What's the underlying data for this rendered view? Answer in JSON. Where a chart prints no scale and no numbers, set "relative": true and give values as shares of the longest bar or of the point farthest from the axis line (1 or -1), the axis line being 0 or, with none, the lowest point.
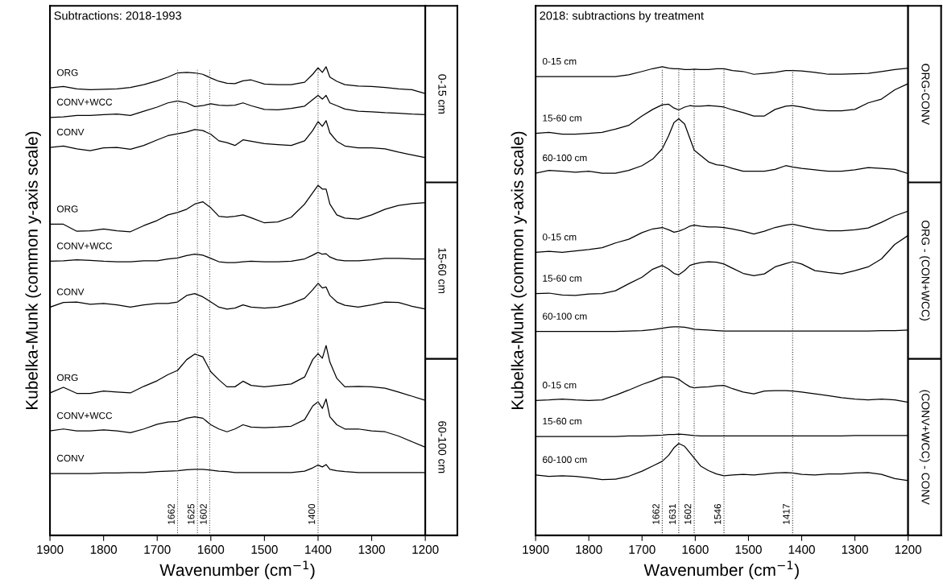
{
  "chart_data": [
    {
      "type": "line",
      "title": "Subtractions: 2018-1993",
      "xlabel": "Wavenumber (cm$^{−1}$)",
      "ylabel": "Kubelka-Munk (common y-axis scale)",
      "relative": true,
      "xlim": [
        1900,
        1200
      ],
      "xticks": [
        1900,
        1800,
        1700,
        1600,
        1500,
        1400,
        1300,
        1200
      ],
      "x": [
        1900,
        1875,
        1850,
        1825,
        1800,
        1775,
        1750,
        1725,
        1700,
        1680,
        1662,
        1645,
        1630,
        1615,
        1600,
        1585,
        1570,
        1555,
        1540,
        1525,
        1500,
        1475,
        1450,
        1425,
        1410,
        1400,
        1392,
        1385,
        1378,
        1365,
        1350,
        1325,
        1300,
        1275,
        1250,
        1225,
        1200
      ],
      "series": [
        {
          "name": "ORG",
          "color": "#000000",
          "values": [
            0.955,
            0.958,
            0.953,
            0.951,
            0.952,
            0.953,
            0.956,
            0.962,
            0.97,
            0.978,
            0.987,
            0.988,
            0.987,
            0.984,
            0.976,
            0.969,
            0.965,
            0.964,
            0.97,
            0.972,
            0.963,
            0.962,
            0.962,
            0.967,
            0.984,
            0.998,
            0.988,
            1.0,
            0.978,
            0.969,
            0.962,
            0.959,
            0.958,
            0.956,
            0.953,
            0.951,
            0.943
          ]
        },
        {
          "name": "CONV+WCC",
          "color": "#000000",
          "values": [
            0.892,
            0.893,
            0.896,
            0.896,
            0.898,
            0.899,
            0.896,
            0.905,
            0.914,
            0.923,
            0.927,
            0.923,
            0.915,
            0.917,
            0.921,
            0.918,
            0.917,
            0.918,
            0.923,
            0.917,
            0.909,
            0.908,
            0.911,
            0.916,
            0.93,
            0.939,
            0.931,
            0.939,
            0.923,
            0.917,
            0.91,
            0.905,
            0.904,
            0.902,
            0.901,
            0.899,
            0.898
          ]
        },
        {
          "name": "CONV",
          "color": "#000000",
          "values": [
            0.828,
            0.831,
            0.825,
            0.821,
            0.827,
            0.828,
            0.824,
            0.832,
            0.844,
            0.853,
            0.857,
            0.861,
            0.866,
            0.864,
            0.856,
            0.842,
            0.838,
            0.832,
            0.844,
            0.841,
            0.836,
            0.834,
            0.832,
            0.842,
            0.864,
            0.883,
            0.873,
            0.885,
            0.859,
            0.841,
            0.831,
            0.827,
            0.827,
            0.825,
            0.818,
            0.812,
            0.806
          ]
        },
        {
          "name": "ORG",
          "color": "#000000",
          "values": [
            0.664,
            0.664,
            0.649,
            0.65,
            0.654,
            0.65,
            0.648,
            0.661,
            0.672,
            0.684,
            0.689,
            0.696,
            0.707,
            0.712,
            0.699,
            0.681,
            0.679,
            0.681,
            0.684,
            0.678,
            0.667,
            0.669,
            0.679,
            0.707,
            0.731,
            0.747,
            0.739,
            0.739,
            0.707,
            0.684,
            0.677,
            0.675,
            0.684,
            0.696,
            0.704,
            0.708,
            0.71
          ]
        },
        {
          "name": "CONV+WCC",
          "color": "#000000",
          "values": [
            0.585,
            0.586,
            0.588,
            0.587,
            0.585,
            0.584,
            0.584,
            0.586,
            0.586,
            0.59,
            0.592,
            0.597,
            0.6,
            0.598,
            0.591,
            0.584,
            0.582,
            0.582,
            0.584,
            0.585,
            0.584,
            0.584,
            0.585,
            0.59,
            0.598,
            0.604,
            0.6,
            0.601,
            0.594,
            0.588,
            0.586,
            0.586,
            0.588,
            0.591,
            0.591,
            0.59,
            0.59
          ]
        },
        {
          "name": "CONV",
          "color": "#000000",
          "values": [
            0.487,
            0.497,
            0.498,
            0.493,
            0.495,
            0.492,
            0.487,
            0.492,
            0.495,
            0.495,
            0.498,
            0.512,
            0.516,
            0.509,
            0.498,
            0.487,
            0.483,
            0.485,
            0.492,
            0.487,
            0.485,
            0.487,
            0.495,
            0.506,
            0.524,
            0.538,
            0.528,
            0.53,
            0.512,
            0.498,
            0.491,
            0.487,
            0.492,
            0.498,
            0.497,
            0.489,
            0.483
          ]
        },
        {
          "name": "ORG",
          "color": "#000000",
          "values": [
            0.304,
            0.316,
            0.303,
            0.303,
            0.308,
            0.306,
            0.304,
            0.318,
            0.33,
            0.343,
            0.352,
            0.375,
            0.387,
            0.381,
            0.349,
            0.332,
            0.317,
            0.317,
            0.329,
            0.32,
            0.317,
            0.32,
            0.323,
            0.338,
            0.375,
            0.388,
            0.378,
            0.405,
            0.37,
            0.335,
            0.317,
            0.318,
            0.317,
            0.314,
            0.306,
            0.297,
            0.288
          ]
        },
        {
          "name": "CONV+WCC",
          "color": "#000000",
          "values": [
            0.223,
            0.227,
            0.223,
            0.223,
            0.225,
            0.223,
            0.219,
            0.227,
            0.237,
            0.242,
            0.243,
            0.25,
            0.253,
            0.25,
            0.236,
            0.227,
            0.221,
            0.227,
            0.236,
            0.231,
            0.23,
            0.231,
            0.233,
            0.247,
            0.276,
            0.285,
            0.271,
            0.291,
            0.253,
            0.236,
            0.227,
            0.227,
            0.223,
            0.221,
            0.212,
            0.2,
            0.188
          ]
        },
        {
          "name": "CONV",
          "color": "#000000",
          "values": [
            0.132,
            0.132,
            0.132,
            0.132,
            0.133,
            0.133,
            0.134,
            0.134,
            0.136,
            0.137,
            0.138,
            0.14,
            0.141,
            0.141,
            0.139,
            0.137,
            0.136,
            0.134,
            0.134,
            0.134,
            0.134,
            0.134,
            0.134,
            0.137,
            0.144,
            0.15,
            0.146,
            0.151,
            0.141,
            0.138,
            0.136,
            0.134,
            0.134,
            0.134,
            0.134,
            0.134,
            0.134
          ]
        }
      ],
      "ref_lines": [
        {
          "axis": "x",
          "value": 1662,
          "label": "1662",
          "color": "#555555",
          "line_style": "dotted"
        },
        {
          "axis": "x",
          "value": 1625,
          "label": "1625",
          "color": "#555555",
          "line_style": "dotted"
        },
        {
          "axis": "x",
          "value": 1602,
          "label": "1602",
          "color": "#555555",
          "line_style": "dotted"
        },
        {
          "axis": "x",
          "value": 1400,
          "label": "1400",
          "color": "#555555",
          "line_style": "dotted"
        }
      ],
      "annotations": [
        "0-15 cm",
        "15-60 cm",
        "60-100 cm"
      ]
    },
    {
      "type": "line",
      "title": "2018: subtractions by treatment",
      "xlabel": "Wavenumber (cm$^{−1}$)",
      "ylabel": "Kubelka-Munk (common y-axis scale)",
      "relative": true,
      "xlim": [
        1900,
        1200
      ],
      "xticks": [
        1900,
        1800,
        1700,
        1600,
        1500,
        1400,
        1300,
        1200
      ],
      "x": [
        1900,
        1875,
        1850,
        1825,
        1800,
        1775,
        1750,
        1725,
        1700,
        1680,
        1662,
        1650,
        1640,
        1631,
        1620,
        1610,
        1602,
        1590,
        1575,
        1560,
        1546,
        1530,
        1510,
        1490,
        1470,
        1450,
        1430,
        1417,
        1400,
        1375,
        1350,
        1325,
        1300,
        1275,
        1250,
        1225,
        1200
      ],
      "series": [
        {
          "name": "0-15 cm",
          "color": "#000000",
          "values": [
            0.979,
            0.979,
            0.979,
            0.979,
            0.979,
            0.979,
            0.979,
            0.983,
            0.99,
            0.996,
            1.0,
            0.997,
            0.996,
            0.996,
            0.994,
            0.994,
            0.995,
            0.994,
            0.994,
            0.996,
            0.996,
            0.992,
            0.99,
            0.984,
            0.986,
            0.988,
            0.992,
            0.992,
            0.991,
            0.988,
            0.984,
            0.984,
            0.985,
            0.986,
            0.99,
            0.994,
            0.997
          ]
        },
        {
          "name": "15-60 cm",
          "color": "#000000",
          "values": [
            0.858,
            0.86,
            0.856,
            0.856,
            0.858,
            0.86,
            0.867,
            0.875,
            0.895,
            0.909,
            0.919,
            0.92,
            0.912,
            0.908,
            0.914,
            0.917,
            0.916,
            0.916,
            0.917,
            0.916,
            0.914,
            0.908,
            0.902,
            0.895,
            0.895,
            0.909,
            0.916,
            0.917,
            0.914,
            0.908,
            0.906,
            0.906,
            0.909,
            0.923,
            0.931,
            0.951,
            0.964
          ]
        },
        {
          "name": "60-100 cm",
          "color": "#000000",
          "values": [
            0.773,
            0.779,
            0.777,
            0.775,
            0.777,
            0.773,
            0.773,
            0.779,
            0.789,
            0.803,
            0.825,
            0.853,
            0.881,
            0.889,
            0.878,
            0.847,
            0.822,
            0.811,
            0.797,
            0.791,
            0.789,
            0.783,
            0.777,
            0.777,
            0.777,
            0.781,
            0.789,
            0.786,
            0.783,
            0.78,
            0.777,
            0.777,
            0.78,
            0.785,
            0.783,
            0.781,
            0.772
          ]
        },
        {
          "name": "0-15 cm",
          "color": "#000000",
          "values": [
            0.604,
            0.606,
            0.604,
            0.607,
            0.61,
            0.614,
            0.624,
            0.632,
            0.646,
            0.654,
            0.657,
            0.652,
            0.647,
            0.649,
            0.654,
            0.66,
            0.662,
            0.66,
            0.658,
            0.658,
            0.657,
            0.654,
            0.649,
            0.643,
            0.649,
            0.657,
            0.662,
            0.664,
            0.66,
            0.654,
            0.65,
            0.65,
            0.652,
            0.656,
            0.668,
            0.682,
            0.692
          ]
        },
        {
          "name": "15-60 cm",
          "color": "#000000",
          "values": [
            0.516,
            0.517,
            0.513,
            0.512,
            0.515,
            0.516,
            0.522,
            0.537,
            0.551,
            0.568,
            0.576,
            0.568,
            0.559,
            0.556,
            0.565,
            0.576,
            0.579,
            0.582,
            0.584,
            0.583,
            0.579,
            0.57,
            0.559,
            0.554,
            0.558,
            0.573,
            0.58,
            0.584,
            0.579,
            0.565,
            0.561,
            0.558,
            0.565,
            0.573,
            0.59,
            0.621,
            0.64
          ]
        },
        {
          "name": "60-100 cm",
          "color": "#000000",
          "values": [
            0.435,
            0.435,
            0.435,
            0.435,
            0.435,
            0.435,
            0.435,
            0.436,
            0.437,
            0.439,
            0.442,
            0.444,
            0.445,
            0.445,
            0.444,
            0.442,
            0.44,
            0.439,
            0.438,
            0.437,
            0.436,
            0.436,
            0.436,
            0.436,
            0.436,
            0.436,
            0.436,
            0.436,
            0.436,
            0.436,
            0.436,
            0.436,
            0.436,
            0.436,
            0.437,
            0.437,
            0.438
          ]
        },
        {
          "name": "0-15 cm",
          "color": "#000000",
          "values": [
            0.288,
            0.289,
            0.291,
            0.289,
            0.288,
            0.289,
            0.299,
            0.31,
            0.322,
            0.33,
            0.338,
            0.338,
            0.337,
            0.333,
            0.324,
            0.317,
            0.315,
            0.316,
            0.317,
            0.319,
            0.32,
            0.313,
            0.306,
            0.302,
            0.308,
            0.309,
            0.309,
            0.308,
            0.306,
            0.302,
            0.298,
            0.294,
            0.291,
            0.289,
            0.291,
            0.289,
            0.284
          ]
        },
        {
          "name": "15-60 cm",
          "color": "#000000",
          "values": [
            0.211,
            0.211,
            0.211,
            0.211,
            0.211,
            0.211,
            0.211,
            0.212,
            0.212,
            0.213,
            0.214,
            0.215,
            0.215,
            0.216,
            0.215,
            0.214,
            0.213,
            0.212,
            0.212,
            0.212,
            0.212,
            0.212,
            0.212,
            0.212,
            0.212,
            0.212,
            0.212,
            0.212,
            0.212,
            0.212,
            0.212,
            0.212,
            0.213,
            0.213,
            0.213,
            0.213,
            0.213
          ]
        },
        {
          "name": "60-100 cm",
          "color": "#000000",
          "values": [
            0.129,
            0.126,
            0.127,
            0.126,
            0.123,
            0.119,
            0.12,
            0.126,
            0.137,
            0.148,
            0.158,
            0.171,
            0.187,
            0.196,
            0.19,
            0.176,
            0.165,
            0.148,
            0.138,
            0.131,
            0.127,
            0.129,
            0.13,
            0.129,
            0.131,
            0.133,
            0.134,
            0.133,
            0.13,
            0.129,
            0.131,
            0.131,
            0.133,
            0.134,
            0.13,
            0.121,
            0.117
          ]
        }
      ],
      "ref_lines": [
        {
          "axis": "x",
          "value": 1662,
          "label": "1662",
          "color": "#333333",
          "line_style": "dotted"
        },
        {
          "axis": "x",
          "value": 1631,
          "label": "1631",
          "color": "#333333",
          "line_style": "dotted"
        },
        {
          "axis": "x",
          "value": 1602,
          "label": "1602",
          "color": "#333333",
          "line_style": "dotted"
        },
        {
          "axis": "x",
          "value": 1546,
          "label": "1546",
          "color": "#333333",
          "line_style": "dotted"
        },
        {
          "axis": "x",
          "value": 1417,
          "label": "1417",
          "color": "#333333",
          "line_style": "dotted"
        }
      ],
      "annotations": [
        "ORG-CONV",
        "ORG - (CON+WCC)",
        "(CONV+WCC) - CONV"
      ]
    }
  ]
}
